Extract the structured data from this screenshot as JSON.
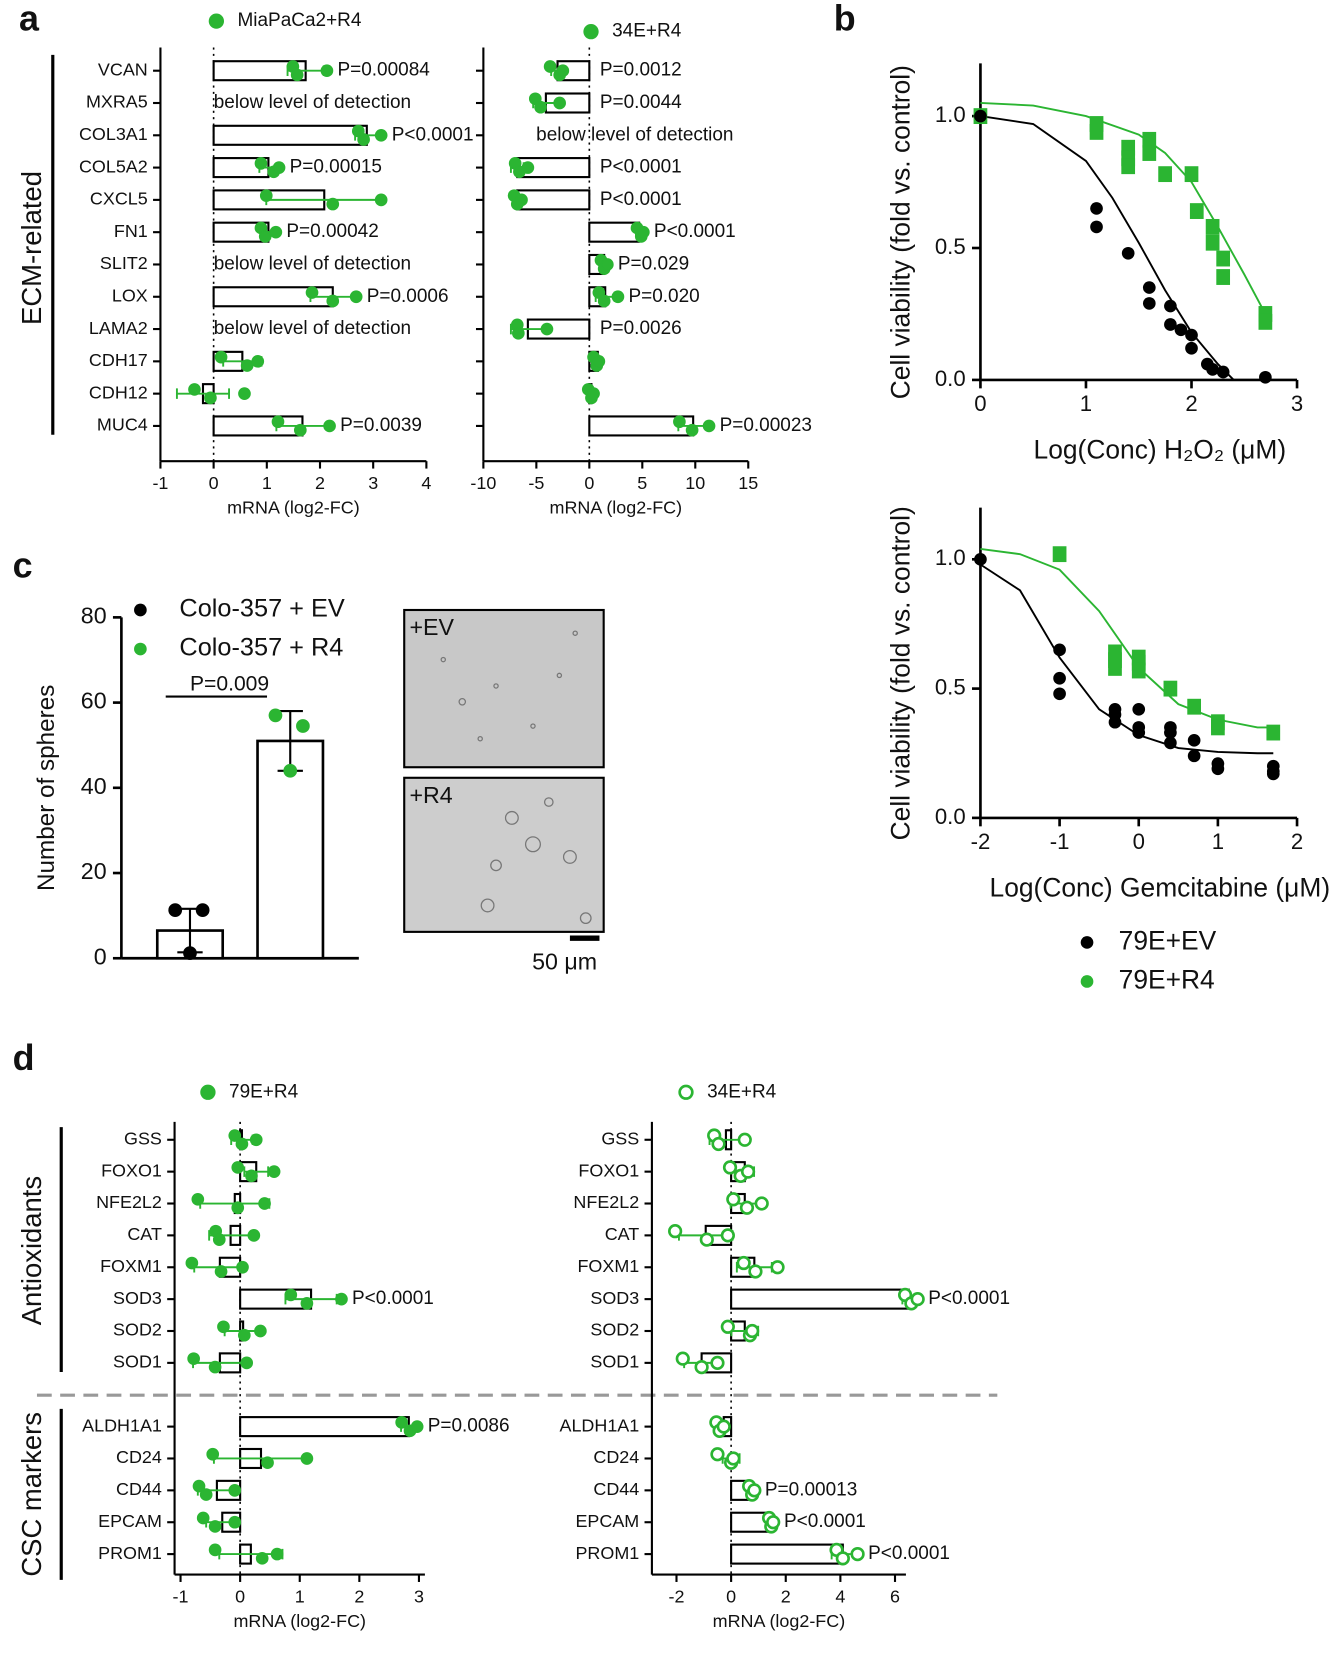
{
  "panel_labels": [
    "a",
    "b",
    "c",
    "d"
  ],
  "chart_data": [
    {
      "type": "hbar",
      "name": "MiaPaCa2+R4",
      "color": "#2bb532",
      "marker": "filled",
      "group_labels": [
        "ECM-related"
      ],
      "categories": [
        "VCAN",
        "MXRA5",
        "COL3A1",
        "COL5A2",
        "CXCL5",
        "FN1",
        "SLIT2",
        "LOX",
        "LAMA2",
        "CDH17",
        "CDH12",
        "MUC4"
      ],
      "values": [
        1.73,
        null,
        2.88,
        1.03,
        2.08,
        1.03,
        null,
        2.24,
        null,
        0.54,
        -0.2,
        1.67
      ],
      "errors": [
        0.34,
        null,
        0.22,
        0.17,
        1.09,
        0.14,
        null,
        0.42,
        null,
        0.36,
        0.49,
        0.49
      ],
      "points": [
        [
          1.49,
          1.57,
          2.13
        ],
        null,
        [
          2.72,
          2.82,
          3.15
        ],
        [
          0.89,
          1.13,
          1.23
        ],
        [
          0.99,
          2.24,
          3.15
        ],
        [
          0.89,
          0.97,
          1.17
        ],
        null,
        [
          1.85,
          2.24,
          2.68
        ],
        null,
        [
          0.14,
          0.63,
          0.83
        ],
        [
          -0.36,
          -0.06,
          0.58
        ],
        [
          1.21,
          1.63,
          2.18
        ]
      ],
      "annotations": [
        "P=0.00084",
        "below level of detection",
        "P<0.0001",
        "P=0.00015",
        null,
        "P=0.00042",
        "below level of detection",
        "P=0.0006",
        "below level of detection",
        null,
        null,
        "P=0.0039"
      ],
      "xlabel": "mRNA (log2-FC)",
      "xlim": [
        -1,
        4
      ],
      "xticks": [
        -1,
        0,
        1,
        2,
        3,
        4
      ]
    },
    {
      "type": "hbar",
      "name": "34E+R4",
      "color": "#2bb532",
      "marker": "filled",
      "categories": [
        null,
        null,
        null,
        null,
        null,
        null,
        null,
        null,
        null,
        null,
        null,
        null
      ],
      "values": [
        -3.0,
        -4.1,
        null,
        -6.8,
        -6.8,
        4.7,
        1.4,
        1.5,
        -5.8,
        0.8,
        0.2,
        9.8
      ],
      "errors": [
        0.6,
        1.2,
        null,
        0.6,
        0.35,
        0.3,
        0.3,
        0.9,
        1.6,
        0.25,
        0.25,
        1.4
      ],
      "points": [
        [
          -3.7,
          -2.8,
          -2.5
        ],
        [
          -5.1,
          -4.6,
          -2.8
        ],
        null,
        [
          -7.0,
          -6.6,
          -5.8
        ],
        [
          -7.1,
          -6.8,
          -6.4
        ],
        [
          4.5,
          4.9,
          5.1
        ],
        [
          1.1,
          1.4,
          1.7
        ],
        [
          0.9,
          1.4,
          2.7
        ],
        [
          -6.8,
          -6.7,
          -4.0
        ],
        [
          0.4,
          0.7,
          0.9
        ],
        [
          -0.1,
          0.2,
          0.4
        ],
        [
          8.5,
          9.7,
          11.3
        ]
      ],
      "annotations": [
        "P=0.0012",
        "P=0.0044",
        "below level of detection",
        "P<0.0001",
        "P<0.0001",
        "P<0.0001",
        "P=0.029",
        "P=0.020",
        "P=0.0026",
        null,
        null,
        "P=0.00023"
      ],
      "xlabel": "mRNA (log2-FC)",
      "xlim": [
        -10,
        15
      ],
      "xticks": [
        -10,
        -5,
        0,
        5,
        10,
        15
      ]
    },
    {
      "type": "scatter",
      "ylabel": "Cell viability (fold vs. control)",
      "xlabel": "Log(Conc) H₂O₂ (μM)",
      "xlim": [
        0,
        3
      ],
      "xticks": [
        0,
        1,
        2,
        3
      ],
      "ylim": [
        0,
        1.2
      ],
      "yticks": [
        {
          "value": 0,
          "label": "0.0"
        },
        0.5,
        {
          "value": 1,
          "label": "1.0"
        }
      ],
      "series": [
        {
          "color": "#000000",
          "marker": "circle",
          "x": [
            0,
            1.1,
            1.1,
            1.4,
            1.6,
            1.6,
            1.8,
            1.8,
            1.9,
            2.0,
            2.0,
            2.15,
            2.2,
            2.3,
            2.7
          ],
          "y": [
            1.0,
            0.65,
            0.58,
            0.48,
            0.35,
            0.29,
            0.28,
            0.21,
            0.19,
            0.17,
            0.12,
            0.06,
            0.04,
            0.03,
            0.01
          ],
          "fit_x": [
            0,
            0.5,
            1,
            1.25,
            1.5,
            1.75,
            2,
            2.25,
            2.4
          ],
          "fit_y": [
            1.0,
            0.97,
            0.83,
            0.69,
            0.52,
            0.34,
            0.18,
            0.06,
            0.0
          ]
        },
        {
          "color": "#2bb532",
          "marker": "square",
          "x": [
            0,
            1.1,
            1.1,
            1.4,
            1.4,
            1.4,
            1.6,
            1.6,
            1.75,
            2.0,
            2.05,
            2.2,
            2.2,
            2.3,
            2.3,
            2.7,
            2.7
          ],
          "y": [
            1.0,
            0.97,
            0.94,
            0.88,
            0.84,
            0.81,
            0.91,
            0.86,
            0.78,
            0.78,
            0.64,
            0.58,
            0.52,
            0.46,
            0.39,
            0.25,
            0.22
          ],
          "fit_x": [
            0,
            0.5,
            1,
            1.5,
            1.75,
            2,
            2.25,
            2.5,
            2.7
          ],
          "fit_y": [
            1.05,
            1.04,
            1.0,
            0.93,
            0.86,
            0.75,
            0.58,
            0.4,
            0.25
          ]
        }
      ]
    },
    {
      "type": "scatter",
      "ylabel": "Cell viability (fold vs. control)",
      "xlabel": "Log(Conc) Gemcitabine (μM)",
      "xlim": [
        -2,
        2
      ],
      "xticks": [
        -2,
        -1,
        0,
        1,
        2
      ],
      "ylim": [
        0,
        1.2
      ],
      "yticks": [
        {
          "value": 0,
          "label": "0.0"
        },
        0.5,
        {
          "value": 1,
          "label": "1.0"
        }
      ],
      "series": [
        {
          "name": "79E+EV",
          "color": "#000000",
          "marker": "circle",
          "x": [
            -2,
            -1,
            -1,
            -1,
            -0.3,
            -0.3,
            -0.3,
            0,
            0,
            0,
            0.4,
            0.4,
            0.4,
            0.7,
            0.7,
            1,
            1,
            1.7,
            1.7,
            1.7
          ],
          "y": [
            1.0,
            0.65,
            0.54,
            0.48,
            0.42,
            0.4,
            0.37,
            0.42,
            0.35,
            0.33,
            0.35,
            0.33,
            0.29,
            0.3,
            0.24,
            0.21,
            0.19,
            0.2,
            0.18,
            0.17
          ],
          "fit_x": [
            -2,
            -1.5,
            -1,
            -0.5,
            0,
            0.5,
            1,
            1.5,
            1.7
          ],
          "fit_y": [
            0.98,
            0.88,
            0.62,
            0.42,
            0.32,
            0.27,
            0.255,
            0.25,
            0.25
          ]
        },
        {
          "name": "79E+R4",
          "color": "#2bb532",
          "marker": "square",
          "x": [
            -1,
            -0.3,
            -0.3,
            -0.3,
            0,
            0,
            0,
            0.4,
            0.7,
            1,
            1,
            1.7
          ],
          "y": [
            1.02,
            0.64,
            0.61,
            0.58,
            0.62,
            0.6,
            0.57,
            0.5,
            0.43,
            0.37,
            0.35,
            0.33
          ],
          "fit_x": [
            -2,
            -1.5,
            -1,
            -0.5,
            0,
            0.5,
            1,
            1.5,
            1.7
          ],
          "fit_y": [
            1.04,
            1.02,
            0.96,
            0.8,
            0.58,
            0.44,
            0.38,
            0.35,
            0.35
          ]
        }
      ]
    },
    {
      "type": "bar",
      "ylabel": "Number of spheres",
      "annotation": "P=0.009",
      "categories": [
        null,
        null
      ],
      "ylim": [
        0,
        80
      ],
      "yticks": [
        0,
        20,
        40,
        60,
        80
      ],
      "series": [
        {
          "name": "Colo-357 + EV",
          "color": "#000000",
          "values": [
            6.5,
            null
          ],
          "errors": [
            5.1,
            null
          ],
          "points": [
            [
              11.3,
              11.3,
              1.2
            ],
            null
          ]
        },
        {
          "name": "Colo-357 + R4",
          "color": "#2bb532",
          "values": [
            null,
            51
          ],
          "errors": [
            null,
            7
          ],
          "points": [
            null,
            [
              57,
              54.5,
              44
            ]
          ]
        }
      ],
      "images": [
        "+EV",
        "+R4"
      ],
      "scale_bar": "50 μm"
    },
    {
      "type": "hbar",
      "name": "79E+R4",
      "color": "#2bb532",
      "marker": "filled",
      "group_labels": [
        "Antioxidants",
        "CSC markers"
      ],
      "categories": [
        "GSS",
        "FOXO1",
        "NFE2L2",
        "CAT",
        "FOXM1",
        "SOD3",
        "SOD2",
        "SOD1",
        "ALDH1A1",
        "CD24",
        "CD44",
        "EPCAM",
        "PROM1"
      ],
      "values": [
        0.03,
        0.27,
        -0.09,
        -0.16,
        -0.34,
        1.19,
        0.05,
        -0.34,
        2.83,
        0.35,
        -0.39,
        -0.3,
        0.18
      ],
      "errors": [
        0.18,
        0.2,
        0.58,
        0.36,
        0.43,
        0.43,
        0.31,
        0.45,
        0.13,
        0.79,
        0.32,
        0.27,
        0.53
      ],
      "points": [
        [
          -0.09,
          0.03,
          0.27
        ],
        [
          -0.04,
          0.19,
          0.57
        ],
        [
          -0.71,
          -0.04,
          0.41
        ],
        [
          -0.41,
          -0.35,
          0.23
        ],
        [
          -0.81,
          -0.32,
          0.04
        ],
        [
          0.85,
          1.12,
          1.7
        ],
        [
          -0.28,
          0.07,
          0.34
        ],
        [
          -0.78,
          -0.42,
          0.11
        ],
        [
          2.71,
          2.85,
          2.97
        ],
        [
          -0.46,
          0.46,
          1.12
        ],
        [
          -0.69,
          -0.57,
          -0.09
        ],
        [
          -0.62,
          -0.42,
          -0.09
        ],
        [
          -0.42,
          0.37,
          0.62
        ]
      ],
      "annotations": [
        null,
        null,
        null,
        null,
        null,
        "P<0.0001",
        null,
        null,
        "P=0.0086",
        null,
        null,
        null,
        null
      ],
      "xlabel": "mRNA (log2-FC)",
      "xlim": [
        -1.1,
        3.1
      ],
      "xticks": [
        -1,
        0,
        1,
        2,
        3
      ]
    },
    {
      "type": "hbar",
      "name": "34E+R4",
      "color": "#2bb532",
      "marker": "open",
      "categories": [
        "GSS",
        "FOXO1",
        "NFE2L2",
        "CAT",
        "FOXM1",
        "SOD3",
        "SOD2",
        "SOD1",
        "ALDH1A1",
        "CD24",
        "CD44",
        "EPCAM",
        "PROM1"
      ],
      "values": [
        -0.19,
        0.5,
        0.5,
        -0.93,
        0.85,
        6.5,
        0.5,
        -1.08,
        -0.27,
        0.0,
        0.73,
        1.47,
        4.09
      ],
      "errors": [
        0.6,
        0.34,
        0.52,
        0.98,
        0.64,
        0.23,
        0.49,
        0.64,
        0.14,
        0.31,
        0.1,
        0.08,
        0.41
      ],
      "points": [
        [
          -0.62,
          -0.46,
          0.5
        ],
        [
          -0.04,
          0.35,
          0.62
        ],
        [
          0.08,
          0.58,
          1.12
        ],
        [
          -2.05,
          -0.89,
          -0.12
        ],
        [
          0.46,
          0.89,
          1.7
        ],
        [
          6.37,
          6.6,
          6.83
        ],
        [
          -0.12,
          0.69,
          0.77
        ],
        [
          -1.77,
          -1.08,
          -0.5
        ],
        [
          -0.54,
          -0.42,
          -0.27
        ],
        [
          -0.5,
          0,
          0.08
        ],
        [
          0.66,
          0.77,
          0.85
        ],
        [
          1.39,
          1.47,
          1.54
        ],
        [
          3.86,
          4.09,
          4.63
        ]
      ],
      "annotations": [
        null,
        null,
        null,
        null,
        null,
        "P<0.0001",
        null,
        null,
        null,
        null,
        "P=0.00013",
        "P<0.0001",
        "P<0.0001"
      ],
      "xlabel": "mRNA (log2-FC)",
      "xlim": [
        -2.9,
        6.4
      ],
      "xticks": [
        -2,
        0,
        2,
        4,
        6
      ]
    }
  ]
}
